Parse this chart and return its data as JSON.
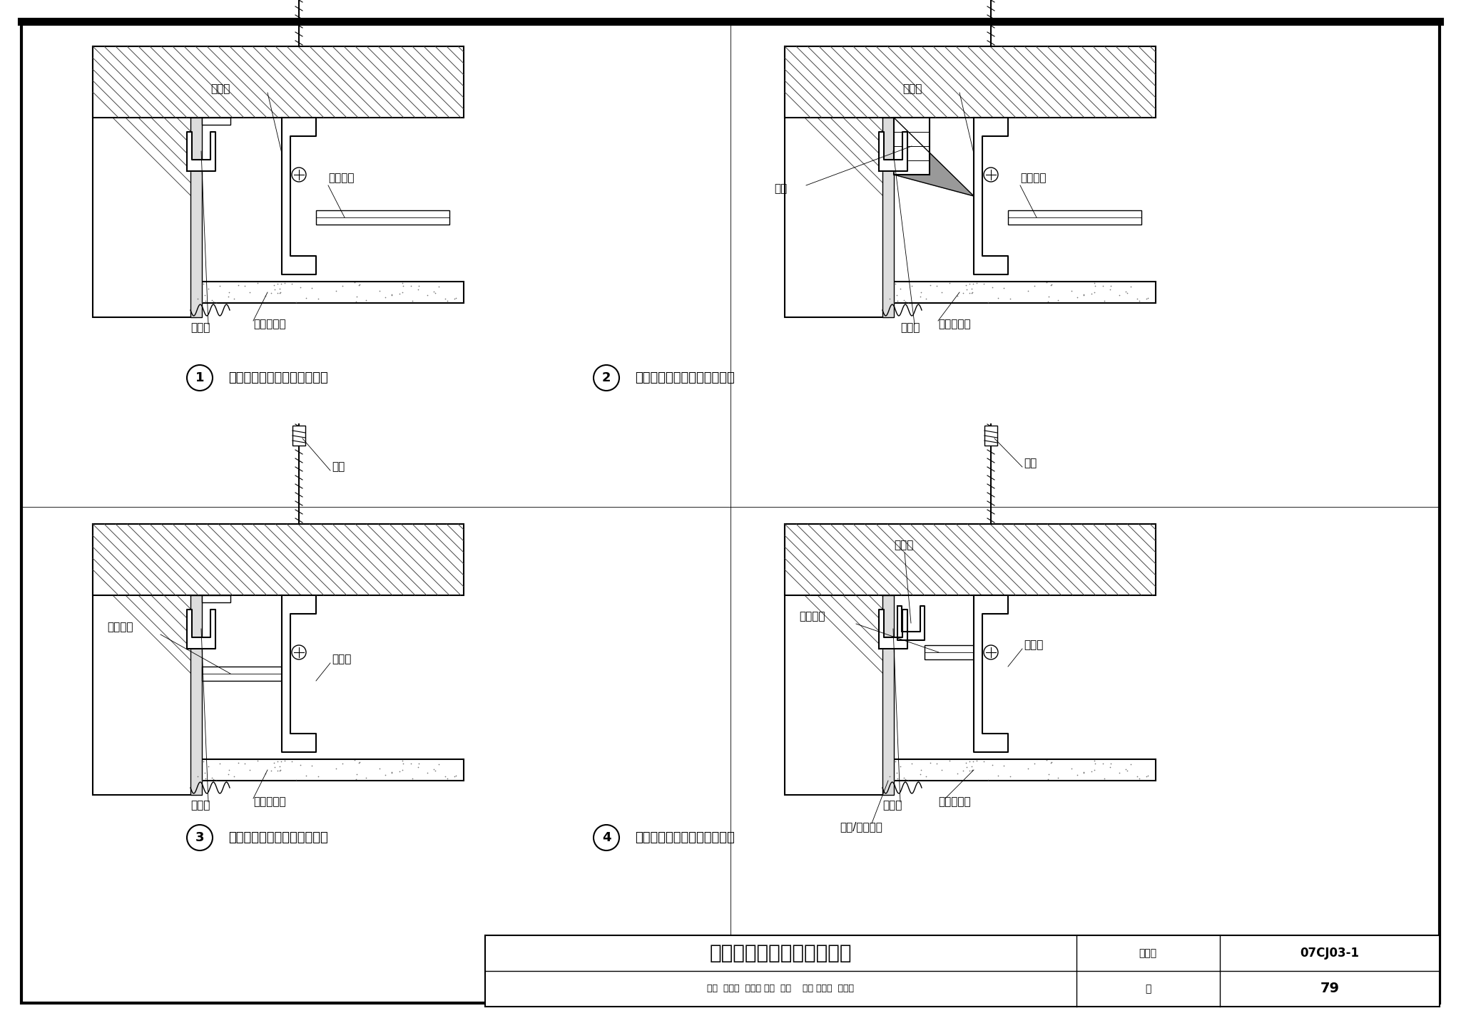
{
  "bg_color": "#ffffff",
  "black": "#000000",
  "dark_gray": "#444444",
  "fig_w": 20.48,
  "fig_h": 14.42,
  "dpi": 100,
  "lw_thick": 2.5,
  "lw_med": 1.5,
  "lw_thin": 1.0,
  "lw_hair": 0.6,
  "title_block": {
    "title": "吊顶石膏板靠墙缝构造做法",
    "atlas_label": "图集号",
    "atlas_num": "07CJ03-1",
    "page_label": "页",
    "page_num": "79",
    "staff": "审核  赵庆辉  赵庆辉 校对  马征    设计 董占波  张比彼"
  },
  "captions": [
    {
      "num": "1",
      "text": "吊顶阴角处理（垂直主龙骨）"
    },
    {
      "num": "2",
      "text": "吊顶阴角处理（垂直主龙骨）"
    },
    {
      "num": "3",
      "text": "吊顶阴角处理（平行主龙骨）"
    },
    {
      "num": "4",
      "text": "吊顶阴角处理（平行主龙骨）"
    }
  ]
}
